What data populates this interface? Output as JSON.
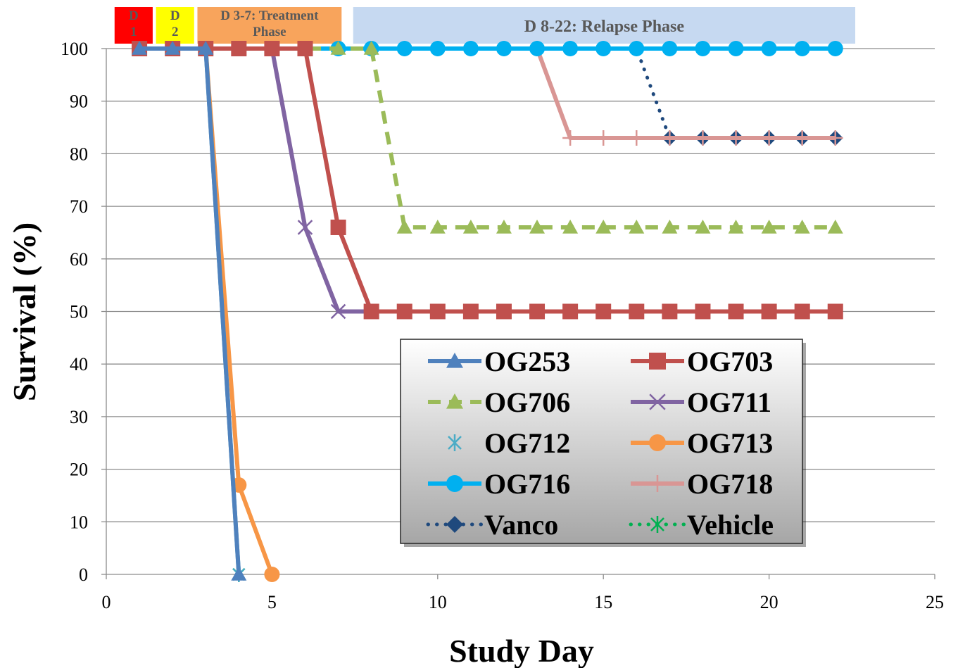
{
  "chart_data": {
    "type": "line",
    "xlabel": "Study Day",
    "ylabel": "Survival (%)",
    "xlim": [
      0,
      25
    ],
    "ylim": [
      0,
      100
    ],
    "xticks": [
      0,
      5,
      10,
      15,
      20,
      25
    ],
    "yticks": [
      0,
      10,
      20,
      30,
      40,
      50,
      60,
      70,
      80,
      90,
      100
    ],
    "grid": "horizontal",
    "legend_position": "bottom-right",
    "phases": [
      {
        "label": "D 1",
        "lines": [
          "D",
          "1"
        ],
        "start": 0.25,
        "end": 1.4,
        "color": "#ff0000"
      },
      {
        "label": "D 2",
        "lines": [
          "D",
          "2"
        ],
        "start": 1.5,
        "end": 2.65,
        "color": "#ffff00"
      },
      {
        "label": "D 3-7: Treatment Phase",
        "lines": [
          "D 3-7: Treatment",
          "Phase"
        ],
        "start": 2.75,
        "end": 7.1,
        "color": "#f8a45c"
      },
      {
        "label": "D 8-22: Relapse Phase",
        "lines": [
          "D 8-22: Relapse Phase"
        ],
        "start": 7.45,
        "end": 22.6,
        "color": "#c6d9f1"
      }
    ],
    "series": [
      {
        "name": "OG253",
        "color": "#4f81bd",
        "marker": "triangle",
        "dash": "solid",
        "x": [
          1,
          2,
          3,
          4
        ],
        "y": [
          100,
          100,
          100,
          0
        ]
      },
      {
        "name": "OG703",
        "color": "#c0504d",
        "marker": "square",
        "dash": "solid",
        "x": [
          1,
          2,
          3,
          4,
          5,
          6,
          7,
          8,
          9,
          10,
          11,
          12,
          13,
          14,
          15,
          16,
          17,
          18,
          19,
          20,
          21,
          22
        ],
        "y": [
          100,
          100,
          100,
          100,
          100,
          100,
          66,
          50,
          50,
          50,
          50,
          50,
          50,
          50,
          50,
          50,
          50,
          50,
          50,
          50,
          50,
          50
        ]
      },
      {
        "name": "OG706",
        "color": "#9bbb59",
        "marker": "triangle",
        "dash": "dashed",
        "x": [
          1,
          2,
          3,
          4,
          5,
          6,
          7,
          8,
          9,
          10,
          11,
          12,
          13,
          14,
          15,
          16,
          17,
          18,
          19,
          20,
          21,
          22
        ],
        "y": [
          100,
          100,
          100,
          100,
          100,
          100,
          100,
          100,
          66,
          66,
          66,
          66,
          66,
          66,
          66,
          66,
          66,
          66,
          66,
          66,
          66,
          66
        ]
      },
      {
        "name": "OG711",
        "color": "#8064a2",
        "marker": "x",
        "dash": "solid",
        "x": [
          1,
          2,
          3,
          4,
          5,
          6,
          7,
          8,
          9,
          10,
          11,
          12,
          13,
          14,
          15,
          16,
          17,
          18,
          19,
          20,
          21,
          22
        ],
        "y": [
          100,
          100,
          100,
          100,
          100,
          66,
          50,
          50,
          50,
          50,
          50,
          50,
          50,
          50,
          50,
          50,
          50,
          50,
          50,
          50,
          50,
          50
        ]
      },
      {
        "name": "OG712",
        "color": "#4bacc6",
        "marker": "star",
        "dash": "solid",
        "x": [
          1,
          2,
          3,
          4
        ],
        "y": [
          100,
          100,
          100,
          0
        ]
      },
      {
        "name": "OG713",
        "color": "#f79646",
        "marker": "circle",
        "dash": "solid",
        "x": [
          1,
          2,
          3,
          4,
          5
        ],
        "y": [
          100,
          100,
          100,
          17,
          0
        ]
      },
      {
        "name": "OG716",
        "color": "#00b0f0",
        "marker": "circle",
        "dash": "solid",
        "x": [
          1,
          2,
          3,
          4,
          5,
          6,
          7,
          8,
          9,
          10,
          11,
          12,
          13,
          14,
          15,
          16,
          17,
          18,
          19,
          20,
          21,
          22
        ],
        "y": [
          100,
          100,
          100,
          100,
          100,
          100,
          100,
          100,
          100,
          100,
          100,
          100,
          100,
          100,
          100,
          100,
          100,
          100,
          100,
          100,
          100,
          100
        ]
      },
      {
        "name": "OG718",
        "color": "#d99694",
        "marker": "plus",
        "dash": "solid",
        "x": [
          1,
          2,
          3,
          4,
          5,
          6,
          7,
          8,
          9,
          10,
          11,
          12,
          13,
          14,
          15,
          16,
          17,
          18,
          19,
          20,
          21,
          22
        ],
        "y": [
          100,
          100,
          100,
          100,
          100,
          100,
          100,
          100,
          100,
          100,
          100,
          100,
          100,
          83,
          83,
          83,
          83,
          83,
          83,
          83,
          83,
          83
        ]
      },
      {
        "name": "Vanco",
        "color": "#1f497d",
        "marker": "diamond",
        "dash": "dotted",
        "x": [
          1,
          2,
          3,
          4,
          5,
          6,
          7,
          8,
          9,
          10,
          11,
          12,
          13,
          14,
          15,
          16,
          17,
          18,
          19,
          20,
          21,
          22
        ],
        "y": [
          100,
          100,
          100,
          100,
          100,
          100,
          100,
          100,
          100,
          100,
          100,
          100,
          100,
          100,
          100,
          100,
          83,
          83,
          83,
          83,
          83,
          83
        ]
      },
      {
        "name": "Vehicle",
        "color": "#00b050",
        "marker": "star",
        "dash": "dotted",
        "x": [
          1,
          2,
          3,
          4
        ],
        "y": [
          100,
          100,
          100,
          0
        ]
      }
    ]
  }
}
